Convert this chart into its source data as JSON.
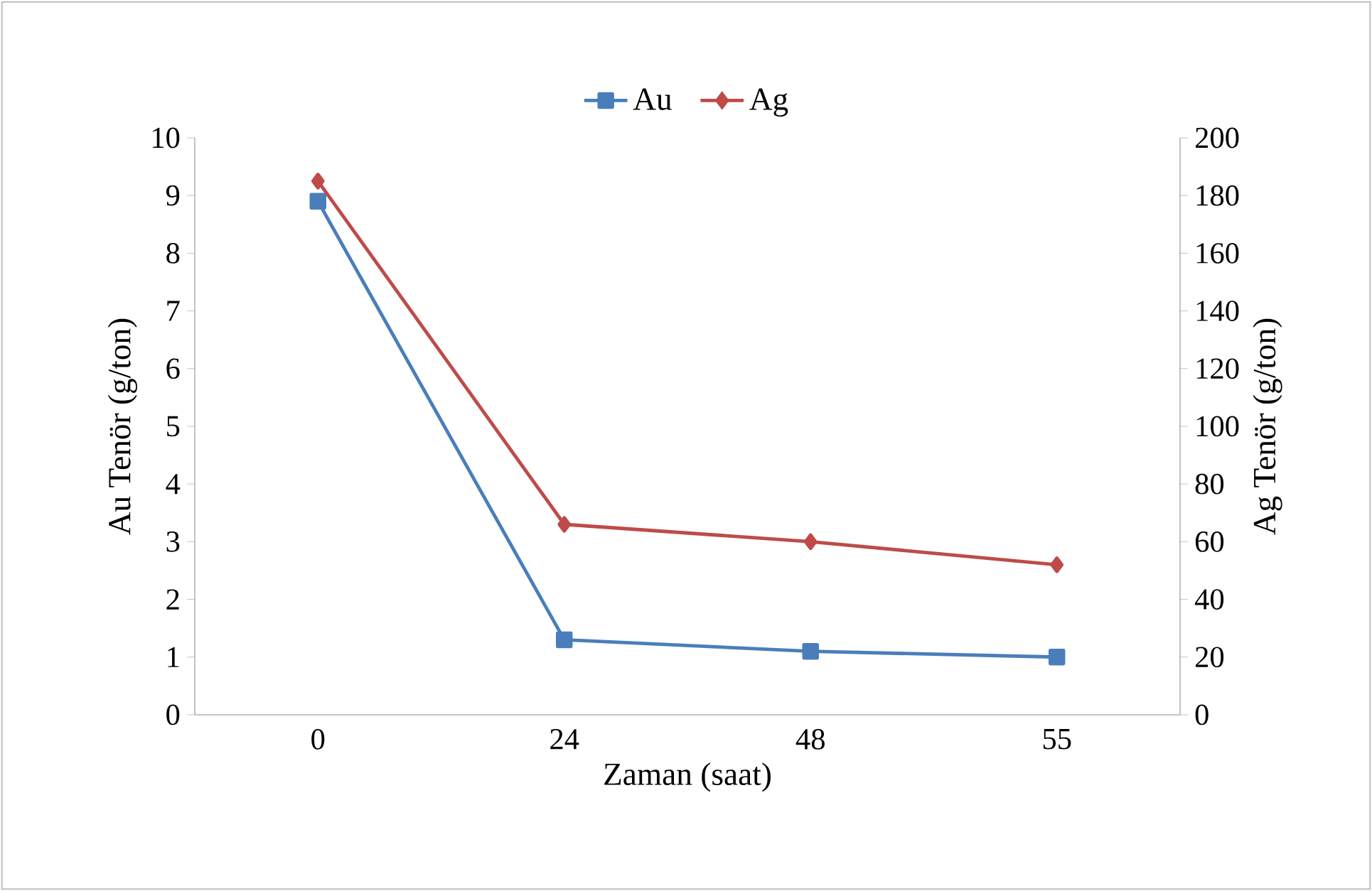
{
  "chart_data": {
    "type": "line",
    "xlabel": "Zaman (saat)",
    "ylabel": "Au Tenör (g/ton)",
    "y2label": "Ag Tenör (g/ton)",
    "categories": [
      "0",
      "24",
      "48",
      "55"
    ],
    "series": [
      {
        "name": "Au",
        "color": "#4a7ebb",
        "marker": "square",
        "values": [
          8.9,
          1.3,
          1.1,
          1.0
        ]
      },
      {
        "name": "Ag",
        "color": "#be4b48",
        "marker": "diamond",
        "axis": "y2",
        "values": [
          185,
          66,
          60,
          52
        ]
      }
    ],
    "ylim": [
      0,
      10
    ],
    "yticks": [
      0,
      1,
      2,
      3,
      4,
      5,
      6,
      7,
      8,
      9,
      10
    ],
    "y2lim": [
      0,
      200
    ],
    "y2ticks": [
      0,
      20,
      40,
      60,
      80,
      100,
      120,
      140,
      160,
      180,
      200
    ],
    "grid": false,
    "legend": "top"
  }
}
